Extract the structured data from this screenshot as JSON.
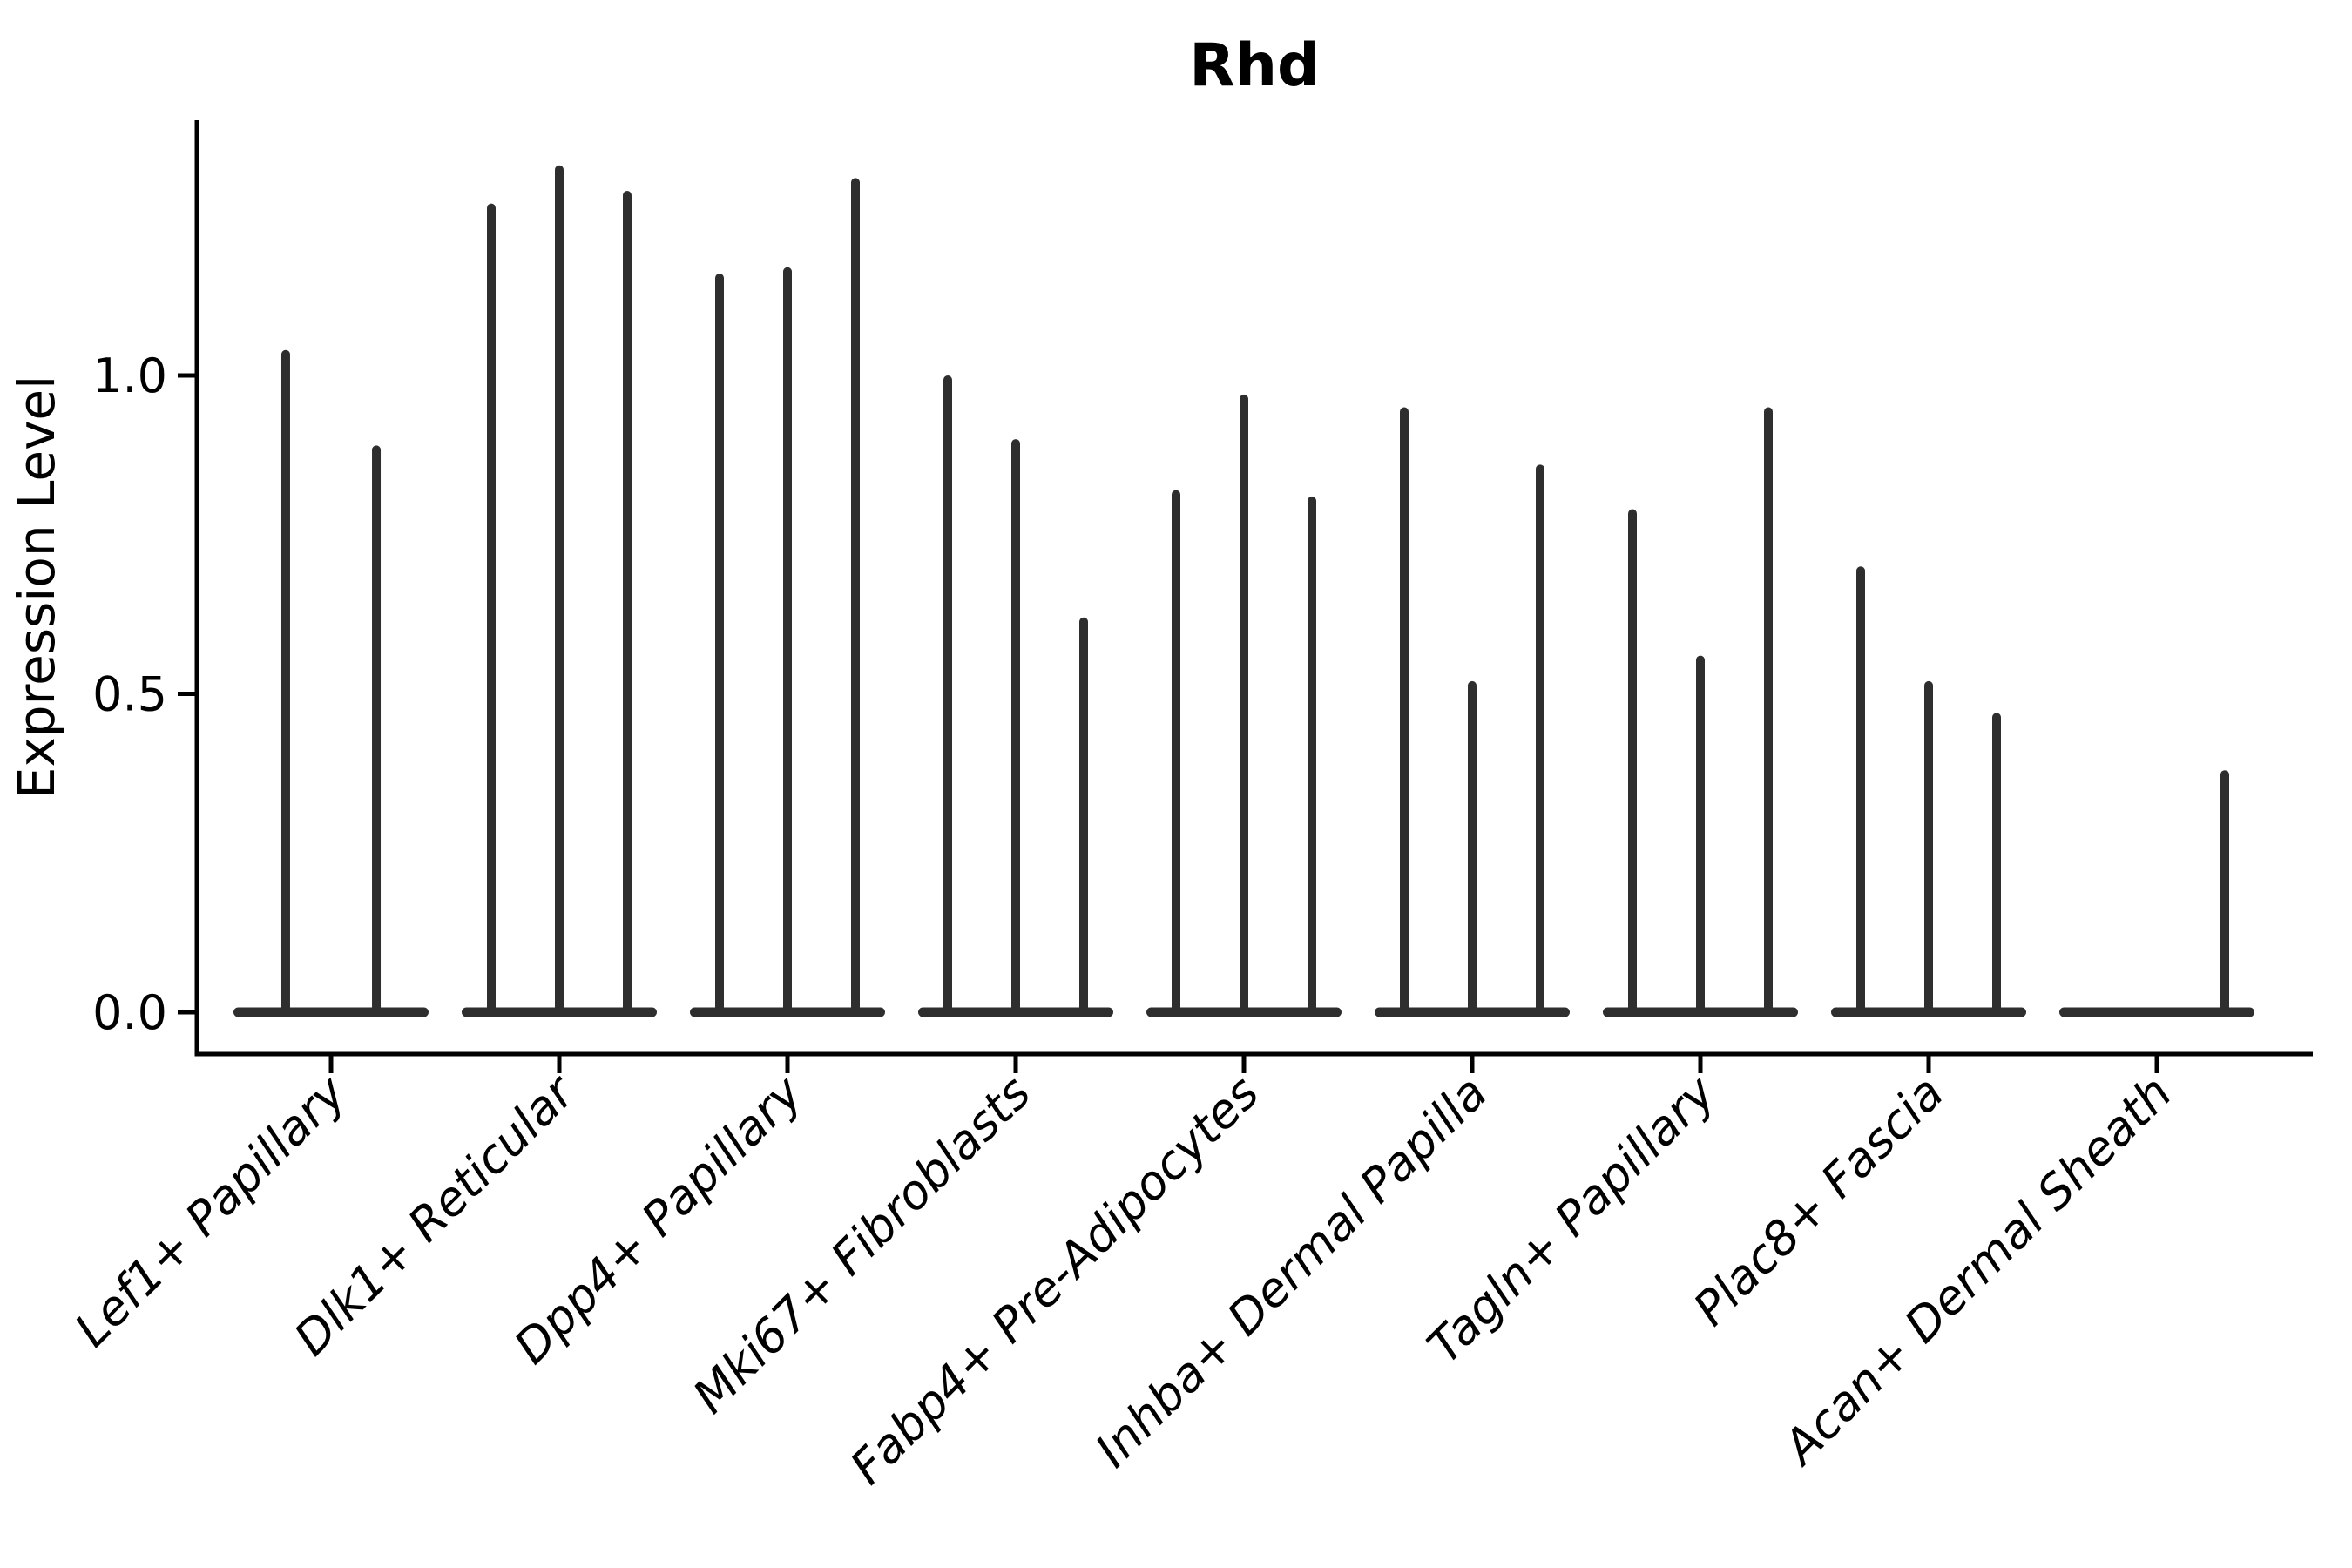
{
  "chart_data": {
    "type": "violin",
    "title": "Rhd",
    "xlabel": "",
    "ylabel": "Expression Level",
    "ytick_labels": [
      "0.0",
      "0.5",
      "1.0"
    ],
    "ytick_values": [
      0.0,
      0.5,
      1.0
    ],
    "ylim": [
      -0.07,
      1.4
    ],
    "grid": false,
    "legend": "none",
    "categories": [
      "Lef1+ Papillary",
      "Dlk1+ Reticular",
      "Dpp4+ Papillary",
      "Mki67+ Fibroblasts",
      "Fabp4+ Pre-Adipocytes",
      "Inhba+ Dermal Papilla",
      "Tagln+ Papillary",
      "Plac8+ Fascia",
      "Acan+ Dermal Sheath"
    ],
    "groups": [
      {
        "label": "Lef1+ Papillary",
        "slot_offsets": [
          -0.667,
          0.667
        ],
        "max_expression": [
          1.04,
          0.89
        ]
      },
      {
        "label": "Dlk1+ Reticular",
        "slot_offsets": [
          -1,
          0,
          1
        ],
        "max_expression": [
          1.27,
          1.33,
          1.29
        ]
      },
      {
        "label": "Dpp4+ Papillary",
        "slot_offsets": [
          -1,
          0,
          1
        ],
        "max_expression": [
          1.16,
          1.17,
          1.31
        ]
      },
      {
        "label": "Mki67+ Fibroblasts",
        "slot_offsets": [
          -1,
          0,
          1
        ],
        "max_expression": [
          1.0,
          0.9,
          0.62
        ]
      },
      {
        "label": "Fabp4+ Pre-Adipocytes",
        "slot_offsets": [
          -1,
          0,
          1
        ],
        "max_expression": [
          0.82,
          0.97,
          0.81
        ]
      },
      {
        "label": "Inhba+ Dermal Papilla",
        "slot_offsets": [
          -1,
          0,
          1
        ],
        "max_expression": [
          0.95,
          0.52,
          0.86
        ]
      },
      {
        "label": "Tagln+ Papillary",
        "slot_offsets": [
          -1,
          0,
          1
        ],
        "max_expression": [
          0.79,
          0.56,
          0.95
        ]
      },
      {
        "label": "Plac8+ Fascia",
        "slot_offsets": [
          -1,
          0,
          1
        ],
        "max_expression": [
          0.7,
          0.52,
          0.47
        ]
      },
      {
        "label": "Acan+ Dermal Sheath",
        "slot_offsets": [
          1
        ],
        "max_expression": [
          0.38
        ]
      }
    ],
    "violin_shape_note": "all mass at 0 (flat base) with thin spike to max"
  },
  "colors": {
    "background": "#ffffff",
    "axis": "#000000",
    "violin": "#2e2e2e",
    "text": "#000000"
  }
}
